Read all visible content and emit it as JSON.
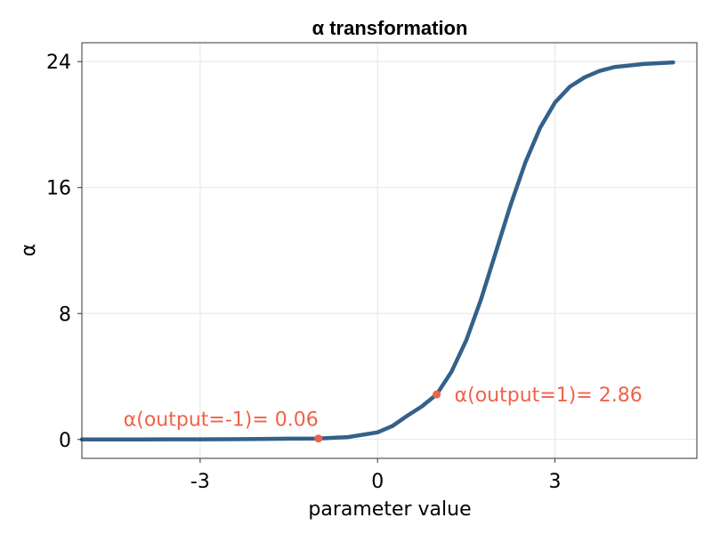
{
  "chart_data": {
    "type": "line",
    "title": "α transformation",
    "xlabel": "parameter value",
    "ylabel": "α",
    "xlim": [
      -5,
      5.4
    ],
    "ylim": [
      -1.2,
      25.2
    ],
    "xticks": [
      -3,
      0,
      3
    ],
    "xtick_labels": [
      "-3",
      "0",
      "3"
    ],
    "yticks": [
      0,
      8,
      16,
      24
    ],
    "ytick_labels": [
      "0",
      "8",
      "16",
      "24"
    ],
    "grid": true,
    "line_color": "#34618a",
    "point_color": "#f0624a",
    "series": [
      {
        "x": [
          -5,
          -4.5,
          -4,
          -3.5,
          -3,
          -2.5,
          -2,
          -1.5,
          -1,
          -0.5,
          0,
          0.25,
          0.5,
          0.75,
          1,
          1.25,
          1.5,
          1.75,
          2,
          2.25,
          2.5,
          2.75,
          3,
          3.25,
          3.5,
          3.75,
          4,
          4.5,
          5
        ],
        "y": [
          0,
          0.001,
          0.003,
          0.007,
          0.01,
          0.015,
          0.03,
          0.05,
          0.06,
          0.15,
          0.45,
          0.85,
          1.5,
          2.1,
          2.86,
          4.3,
          6.3,
          8.9,
          11.9,
          14.9,
          17.6,
          19.8,
          21.4,
          22.4,
          23.0,
          23.4,
          23.65,
          23.85,
          23.95
        ]
      }
    ],
    "annotations": [
      {
        "x": -1,
        "y": 0.06,
        "text": "α(output=-1)= 0.06"
      },
      {
        "x": 1,
        "y": 2.86,
        "text": "α(output=1)= 2.86"
      }
    ]
  }
}
